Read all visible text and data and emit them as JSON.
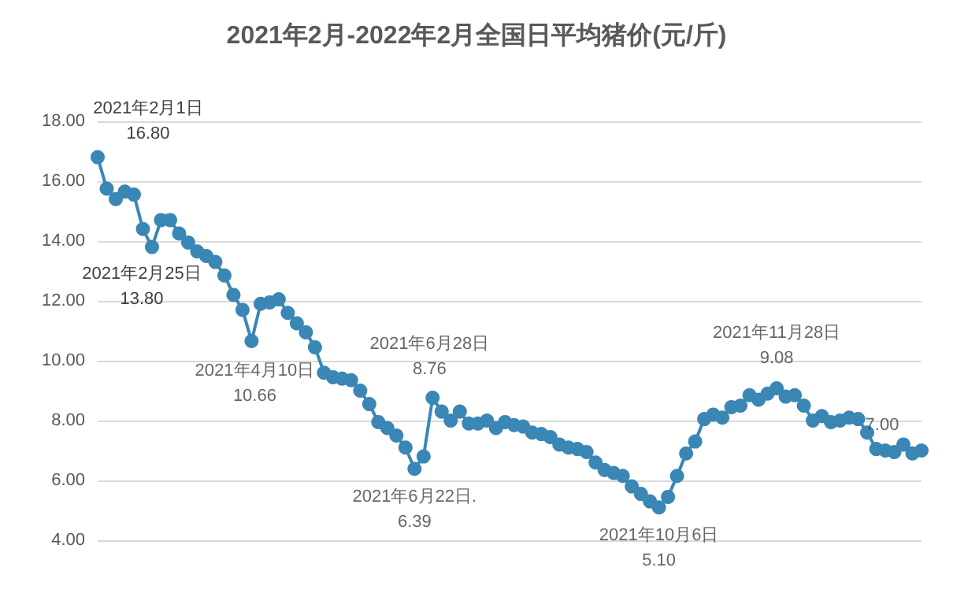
{
  "chart_data": {
    "type": "line",
    "title": "2021年2月-2022年2月全国日平均猪价(元/斤)",
    "categories": [
      null,
      null,
      null,
      null,
      null,
      null,
      null,
      null,
      null,
      null,
      null,
      null,
      null,
      null,
      null,
      null,
      null,
      null,
      null,
      null,
      null,
      null,
      null,
      null,
      null,
      null,
      null,
      null,
      null,
      null,
      null,
      null,
      null,
      null,
      null,
      null,
      null,
      null,
      null,
      null,
      null,
      null,
      null,
      null,
      null,
      null,
      null,
      null,
      null,
      null,
      null,
      null,
      null,
      null,
      null,
      null,
      null,
      null,
      null,
      null,
      null,
      null,
      null,
      null,
      null,
      null,
      null,
      null,
      null,
      null,
      null,
      null,
      null,
      null,
      null,
      null,
      null,
      null,
      null,
      null,
      null,
      null,
      null,
      null,
      null,
      null,
      null,
      null,
      null,
      null,
      null,
      null
    ],
    "series": [
      {
        "color": "#3a87b5",
        "values": [
          16.8,
          15.75,
          15.4,
          15.65,
          15.55,
          14.4,
          13.8,
          14.7,
          14.7,
          14.25,
          13.95,
          13.65,
          13.5,
          13.3,
          12.85,
          12.2,
          11.7,
          10.66,
          11.9,
          11.95,
          12.05,
          11.6,
          11.25,
          10.95,
          10.45,
          9.6,
          9.45,
          9.4,
          9.35,
          9.0,
          8.55,
          7.95,
          7.75,
          7.5,
          7.1,
          6.39,
          6.8,
          8.76,
          8.3,
          8.0,
          8.3,
          7.9,
          7.9,
          8.0,
          7.75,
          7.95,
          7.85,
          7.8,
          7.6,
          7.55,
          7.45,
          7.2,
          7.1,
          7.05,
          6.95,
          6.6,
          6.35,
          6.25,
          6.15,
          5.8,
          5.55,
          5.3,
          5.1,
          5.45,
          6.15,
          6.9,
          7.3,
          8.05,
          8.2,
          8.1,
          8.45,
          8.5,
          8.85,
          8.7,
          8.9,
          9.08,
          8.8,
          8.85,
          8.5,
          8.0,
          8.15,
          7.95,
          8.0,
          8.1,
          8.05,
          7.6,
          7.05,
          7.0,
          6.95,
          7.2,
          6.9,
          7.0
        ]
      }
    ],
    "ylim": [
      4,
      18
    ],
    "yticks": [
      {
        "value": 4,
        "label": "4.00"
      },
      {
        "value": 6,
        "label": "6.00"
      },
      {
        "value": 8,
        "label": "8.00"
      },
      {
        "value": 10,
        "label": "10.00"
      },
      {
        "value": 12,
        "label": "12.00"
      },
      {
        "value": 14,
        "label": "14.00"
      },
      {
        "value": 16,
        "label": "16.00"
      },
      {
        "value": 18,
        "label": "18.00"
      }
    ],
    "tick_labels": "y",
    "grid": "y",
    "marker": "circle",
    "annotations": [
      "2021年2月1日\n16.80",
      "2021年2月25日\n13.80",
      {
        "text": "2021年4月10日\n10.66",
        "y": 10.66
      },
      {
        "text": "2021年6月28日\n8.76",
        "y": 8.76
      },
      {
        "text": "2021年6月22日.\n6.39",
        "y": 6.39
      },
      {
        "text": "2021年10月6日\n5.10",
        "y": 5.1
      },
      {
        "text": "2021年11月28日\n9.08",
        "y": 9.08
      },
      {
        "text": "7.00",
        "y": 7.0
      }
    ]
  }
}
